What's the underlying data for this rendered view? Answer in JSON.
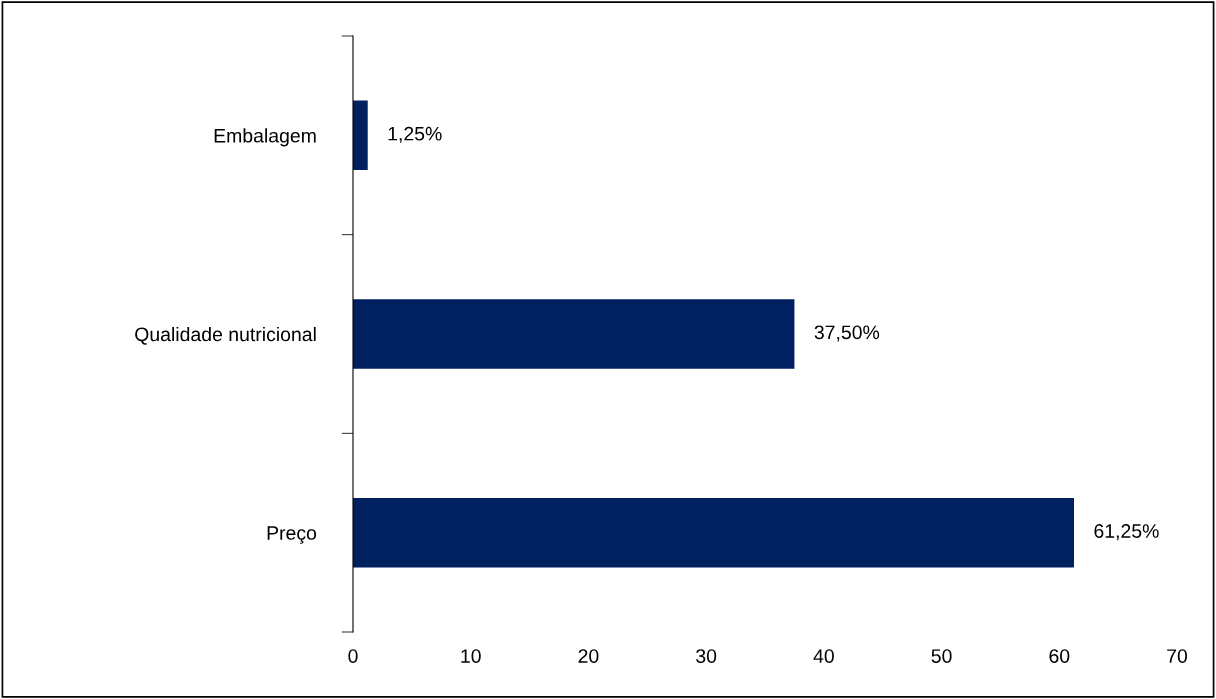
{
  "chart_data": {
    "type": "bar",
    "orientation": "horizontal",
    "categories": [
      "Embalagem",
      "Qualidade nutricional",
      "Preço"
    ],
    "values": [
      1.25,
      37.5,
      61.25
    ],
    "value_labels": [
      "1,25%",
      "37,50%",
      "61,25%"
    ],
    "color": "#002060",
    "xlim": [
      0,
      70
    ],
    "xticks": [
      0,
      10,
      20,
      30,
      40,
      50,
      60,
      70
    ],
    "grid": false,
    "legend": false
  }
}
